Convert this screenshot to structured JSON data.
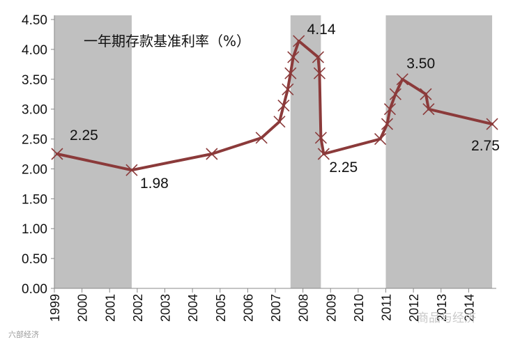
{
  "chart_data": {
    "type": "line",
    "title": "一年期存款基准利率（%）",
    "xlabel": "",
    "ylabel": "",
    "ylim": [
      0,
      4.5
    ],
    "yticks": [
      "0.00",
      "0.50",
      "1.00",
      "1.50",
      "2.00",
      "2.50",
      "3.00",
      "3.50",
      "4.00",
      "4.50"
    ],
    "xlim": [
      1999,
      2015
    ],
    "xticks": [
      "1999",
      "2000",
      "2001",
      "2002",
      "2003",
      "2004",
      "2005",
      "2006",
      "2007",
      "2008",
      "2009",
      "2010",
      "2011",
      "2012",
      "2013",
      "2014"
    ],
    "grid": false,
    "shaded_periods": [
      [
        1999,
        2001.8
      ],
      [
        2007.55,
        2008.65
      ],
      [
        2011.0,
        2014.85
      ]
    ],
    "series": [
      {
        "color": "#8b3a3a",
        "marker": "x",
        "points": [
          [
            1999.1,
            2.25
          ],
          [
            2001.8,
            1.98
          ],
          [
            2004.7,
            2.25
          ],
          [
            2006.5,
            2.52
          ],
          [
            2007.15,
            2.79
          ],
          [
            2007.3,
            3.06
          ],
          [
            2007.45,
            3.33
          ],
          [
            2007.55,
            3.6
          ],
          [
            2007.65,
            3.87
          ],
          [
            2007.85,
            4.14
          ],
          [
            2008.55,
            3.87
          ],
          [
            2008.6,
            3.6
          ],
          [
            2008.65,
            2.52
          ],
          [
            2008.75,
            2.25
          ],
          [
            2010.8,
            2.5
          ],
          [
            2011.05,
            2.75
          ],
          [
            2011.15,
            3.0
          ],
          [
            2011.35,
            3.25
          ],
          [
            2011.6,
            3.5
          ],
          [
            2012.45,
            3.25
          ],
          [
            2012.55,
            3.0
          ],
          [
            2014.85,
            2.75
          ]
        ]
      }
    ],
    "data_labels": [
      {
        "text": "2.25",
        "x": 1999.1,
        "y": 2.25
      },
      {
        "text": "1.98",
        "x": 2001.8,
        "y": 1.98
      },
      {
        "text": "4.14",
        "x": 2007.85,
        "y": 4.14
      },
      {
        "text": "2.25",
        "x": 2008.75,
        "y": 2.25
      },
      {
        "text": "3.50",
        "x": 2011.6,
        "y": 3.5
      },
      {
        "text": "2.75",
        "x": 2014.85,
        "y": 2.75
      }
    ]
  },
  "watermarks": [
    "六部经济",
    "商品与经济"
  ],
  "colors": {
    "shade": "#c0c0c0",
    "line": "#8b3a3a",
    "axis": "#888888"
  }
}
